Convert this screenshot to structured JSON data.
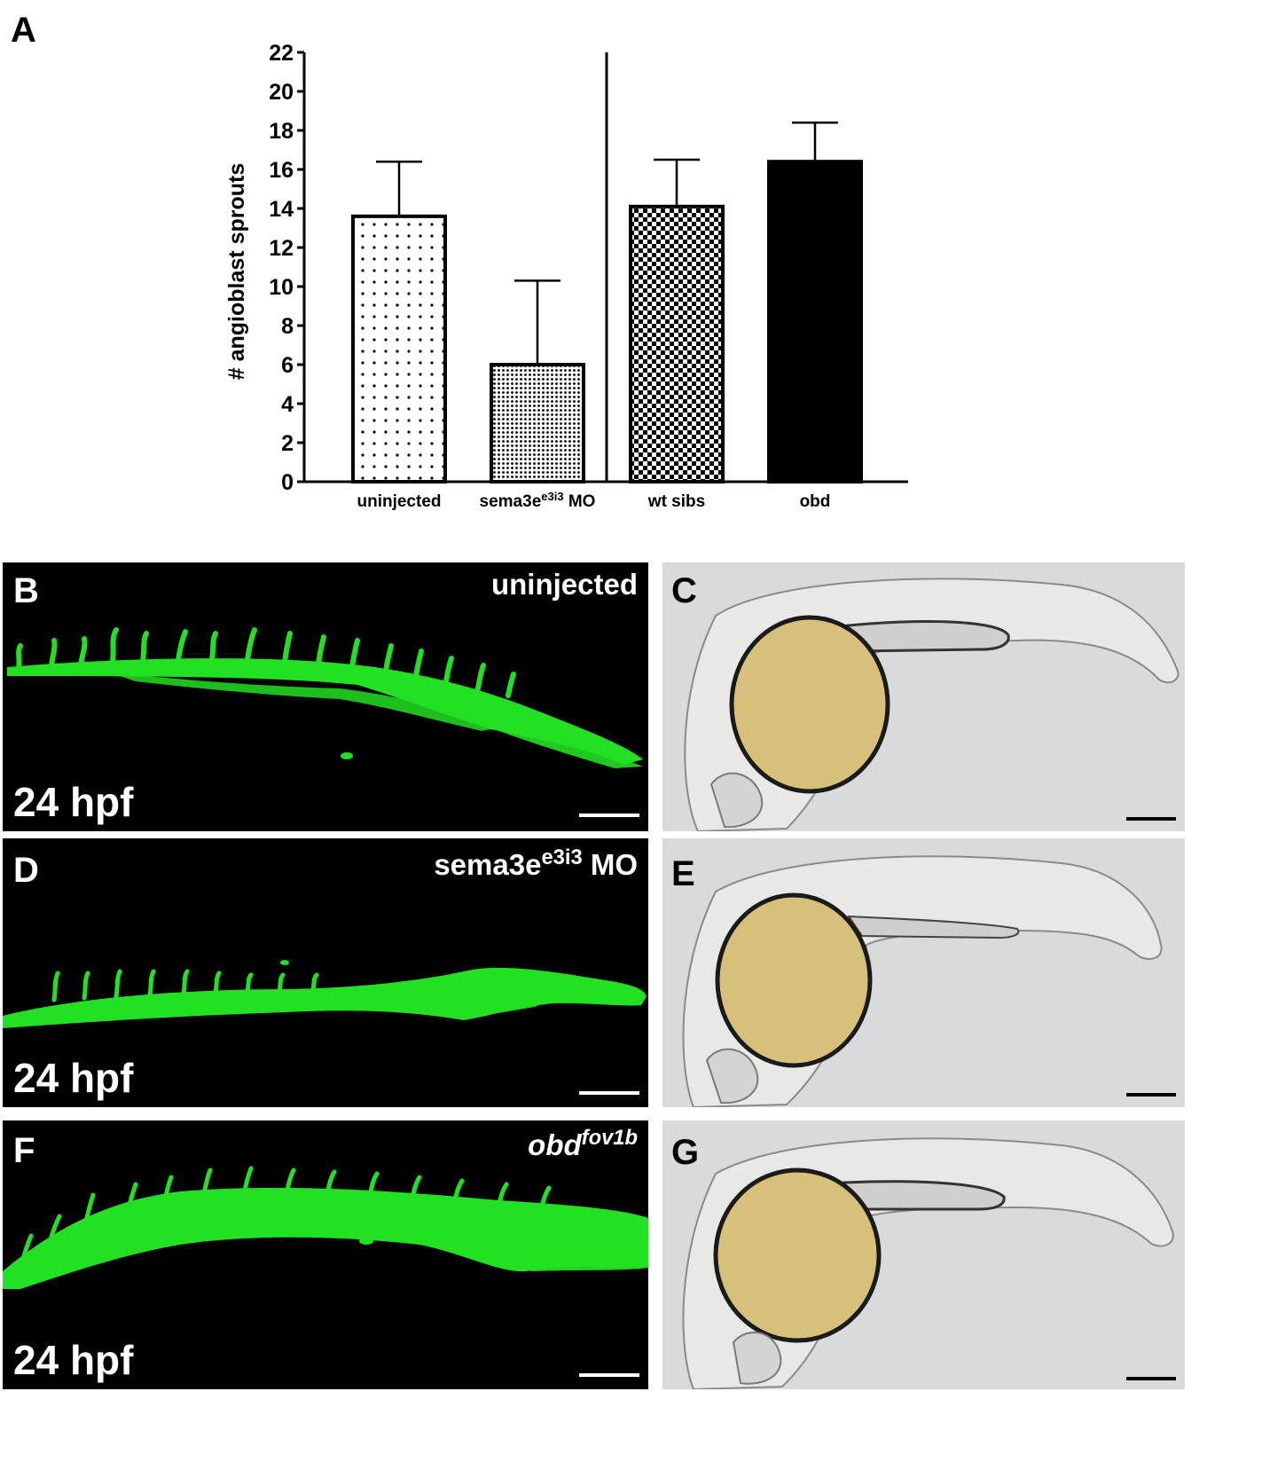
{
  "figure": {
    "panel_a_letter": "A",
    "panel_letters": [
      "B",
      "C",
      "D",
      "E",
      "F",
      "G"
    ]
  },
  "chart_data": {
    "type": "bar",
    "ylabel": "# angioblast sprouts",
    "ylim": [
      0,
      22
    ],
    "yticks": [
      0,
      2,
      4,
      6,
      8,
      10,
      12,
      14,
      16,
      18,
      20,
      22
    ],
    "categories": [
      "uninjected",
      "sema3e",
      "wt sibs",
      "obd"
    ],
    "category_superscripts": [
      "",
      "e3i3",
      "",
      ""
    ],
    "category_suffixes": [
      "",
      " MO",
      "",
      ""
    ],
    "values": [
      13.6,
      6.0,
      14.1,
      16.4
    ],
    "error_upper": [
      16.4,
      10.3,
      16.5,
      18.4
    ],
    "fills": [
      "sparse-dots",
      "dense-dots",
      "checkerboard",
      "solid-black"
    ],
    "group_divider_after_index": 1
  },
  "panels": {
    "B": {
      "letter": "B",
      "condition": "uninjected",
      "stage": "24 hpf"
    },
    "C": {
      "letter": "C"
    },
    "D": {
      "letter": "D",
      "condition_base": "sema3e",
      "condition_sup": "e3i3",
      "condition_suffix": " MO",
      "stage": "24 hpf"
    },
    "E": {
      "letter": "E"
    },
    "F": {
      "letter": "F",
      "condition_base": "obd",
      "condition_sup": "fov1b",
      "stage": "24 hpf"
    },
    "G": {
      "letter": "G"
    }
  },
  "colors": {
    "fluorescence": "#22e022",
    "background": "#000000",
    "brightfield": "#d9dadb",
    "yolk": "#d6c07a"
  }
}
